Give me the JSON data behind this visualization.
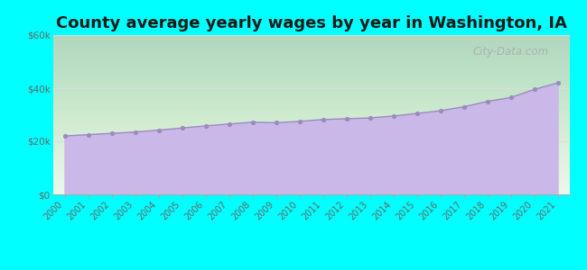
{
  "title": "County average yearly wages by year in Washington, IA",
  "years": [
    2000,
    2001,
    2002,
    2003,
    2004,
    2005,
    2006,
    2007,
    2008,
    2009,
    2010,
    2011,
    2012,
    2013,
    2014,
    2015,
    2016,
    2017,
    2018,
    2019,
    2020,
    2021
  ],
  "wages": [
    22000,
    22500,
    23000,
    23500,
    24200,
    25000,
    25800,
    26500,
    27200,
    27000,
    27500,
    28200,
    28500,
    28800,
    29500,
    30500,
    31500,
    33000,
    35000,
    36500,
    39500,
    42000
  ],
  "ylim": [
    0,
    60000
  ],
  "yticks": [
    0,
    20000,
    40000,
    60000
  ],
  "ytick_labels": [
    "$0",
    "$20k",
    "$40k",
    "$60k"
  ],
  "fill_color": "#C9B8E8",
  "line_color": "#9B8ABF",
  "marker_color": "#9B8ABF",
  "outer_bg": "#00FFFF",
  "plot_bg_top": "#d6efe0",
  "plot_bg_bottom": "#ffffff",
  "watermark": "City-Data.com",
  "title_fontsize": 13,
  "title_color": "#1a1a1a",
  "grid_color": "#dddddd"
}
